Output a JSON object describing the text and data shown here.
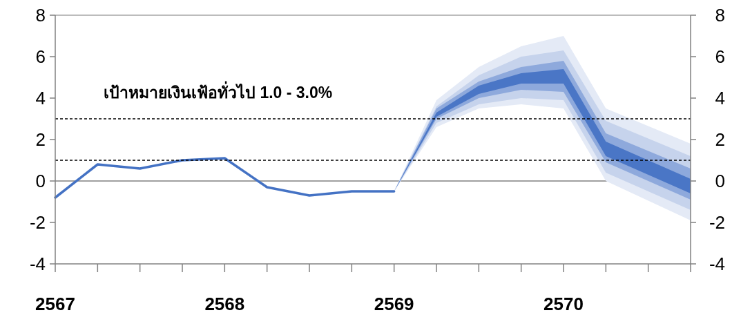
{
  "chart_data": {
    "type": "line",
    "xlim": [
      2567,
      2570.75
    ],
    "xticks": [
      2567,
      {
        "value": 2567.25,
        "label": null
      },
      {
        "value": 2567.5,
        "label": null
      },
      {
        "value": 2567.75,
        "label": null
      },
      2568,
      {
        "value": 2568.25,
        "label": null
      },
      {
        "value": 2568.5,
        "label": null
      },
      {
        "value": 2568.75,
        "label": null
      },
      2569,
      {
        "value": 2569.25,
        "label": null
      },
      {
        "value": 2569.5,
        "label": null
      },
      {
        "value": 2569.75,
        "label": null
      },
      2570,
      {
        "value": 2570.25,
        "label": null
      },
      {
        "value": 2570.5,
        "label": null
      },
      {
        "value": 2570.75,
        "label": null
      }
    ],
    "ylim": [
      -4,
      8
    ],
    "yticks": [
      -4,
      -2,
      0,
      2,
      4,
      6,
      8
    ],
    "y2lim": [
      -4,
      8
    ],
    "y2ticks": [
      -4,
      -2,
      0,
      2,
      4,
      6,
      8
    ],
    "series": [
      {
        "type": "line",
        "color": "#e4eaf6",
        "x": [
          2569,
          2569.25,
          2569.5,
          2569.75,
          2570,
          2570.25,
          2570.75
        ],
        "values": [
          null,
          null,
          null,
          null,
          null,
          null,
          null
        ],
        "upper": [
          -0.5,
          3.9,
          5.5,
          6.5,
          7.0,
          3.5,
          1.8
        ],
        "lower": [
          -0.5,
          2.6,
          3.5,
          3.7,
          3.5,
          0.0,
          -1.9
        ]
      },
      {
        "type": "line",
        "color": "#c6d3ec",
        "x": [
          2569,
          2569.25,
          2569.5,
          2569.75,
          2570,
          2570.25,
          2570.75
        ],
        "values": [
          null,
          null,
          null,
          null,
          null,
          null,
          null
        ],
        "upper": [
          -0.5,
          3.6,
          5.1,
          6.0,
          6.3,
          2.9,
          1.2
        ],
        "lower": [
          -0.5,
          2.8,
          3.7,
          4.0,
          3.9,
          0.4,
          -1.4
        ]
      },
      {
        "type": "line",
        "color": "#8ea9dc",
        "x": [
          2569,
          2569.25,
          2569.5,
          2569.75,
          2570,
          2570.25,
          2570.75
        ],
        "values": [
          null,
          null,
          null,
          null,
          null,
          null,
          null
        ],
        "upper": [
          -0.5,
          3.5,
          4.8,
          5.5,
          5.8,
          2.3,
          0.6
        ],
        "lower": [
          -0.5,
          3.0,
          4.0,
          4.4,
          4.3,
          0.9,
          -0.9
        ]
      },
      {
        "type": "line",
        "color": "#4a76c6",
        "x": [
          2569,
          2569.25,
          2569.5,
          2569.75,
          2570,
          2570.25,
          2570.75
        ],
        "values": [
          null,
          null,
          null,
          null,
          null,
          null,
          null
        ],
        "upper": [
          -0.5,
          3.3,
          4.6,
          5.2,
          5.4,
          1.9,
          0.1
        ],
        "lower": [
          -0.5,
          3.1,
          4.2,
          4.7,
          4.7,
          1.2,
          -0.6
        ]
      },
      {
        "type": "line",
        "color": "#4472c4",
        "x": [
          2567,
          2567.25,
          2567.5,
          2567.75,
          2568,
          2568.25,
          2568.5,
          2568.75,
          2569
        ],
        "values": [
          -0.8,
          0.8,
          0.6,
          1.0,
          1.1,
          -0.3,
          -0.7,
          -0.5,
          -0.5
        ]
      }
    ],
    "ref_lines": [
      {
        "axis": "y",
        "value": 0,
        "color": "#808080",
        "line_style": "solid"
      },
      {
        "axis": "y",
        "value": 1,
        "color": "#000000",
        "line_style": "dashed"
      },
      {
        "axis": "y",
        "value": 3,
        "color": "#000000",
        "line_style": "dashed"
      }
    ],
    "annotations": [
      "เป้าหมายเงินเฟ้อทั่วไป 1.0 - 3.0%"
    ]
  }
}
